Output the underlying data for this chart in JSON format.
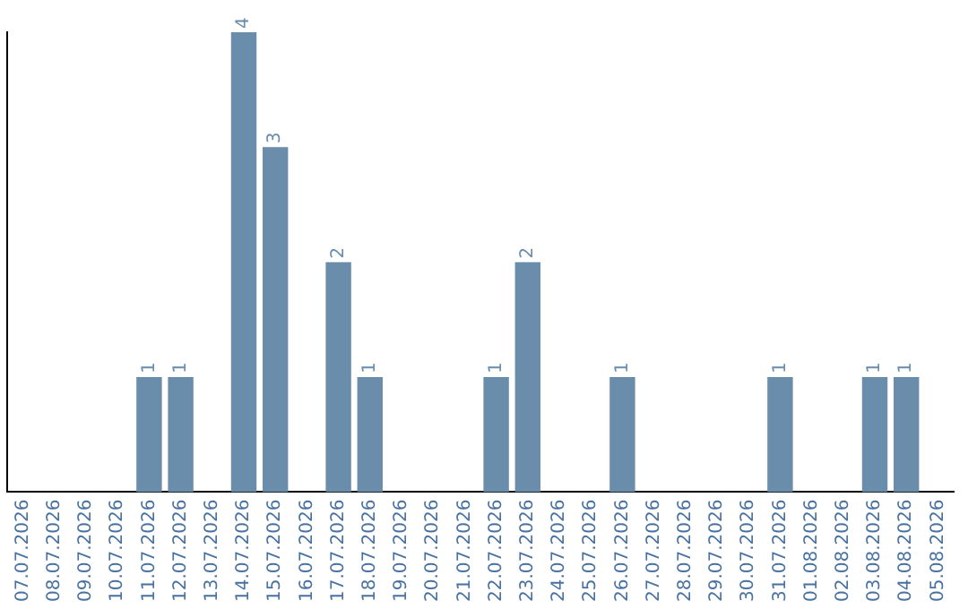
{
  "chart_data": {
    "type": "bar",
    "categories": [
      "07.07.2026",
      "08.07.2026",
      "09.07.2026",
      "10.07.2026",
      "11.07.2026",
      "12.07.2026",
      "13.07.2026",
      "14.07.2026",
      "15.07.2026",
      "16.07.2026",
      "17.07.2026",
      "18.07.2026",
      "19.07.2026",
      "20.07.2026",
      "21.07.2026",
      "22.07.2026",
      "23.07.2026",
      "24.07.2026",
      "25.07.2026",
      "26.07.2026",
      "27.07.2026",
      "28.07.2026",
      "29.07.2026",
      "30.07.2026",
      "31.07.2026",
      "01.08.2026",
      "02.08.2026",
      "03.08.2026",
      "04.08.2026",
      "05.08.2026"
    ],
    "values": [
      0,
      0,
      0,
      0,
      1,
      1,
      0,
      4,
      3,
      0,
      2,
      1,
      0,
      0,
      0,
      1,
      2,
      0,
      0,
      1,
      0,
      0,
      0,
      0,
      1,
      0,
      0,
      1,
      1,
      0
    ],
    "value_labels": [
      null,
      null,
      null,
      null,
      "1",
      "1",
      null,
      "4",
      "3",
      null,
      "2",
      "1",
      null,
      null,
      null,
      "1",
      "2",
      null,
      null,
      "1",
      null,
      null,
      null,
      null,
      "1",
      null,
      null,
      "1",
      "1",
      null
    ],
    "color": "#6b8dac",
    "tick_labels": "x",
    "grid": false,
    "legend": false
  }
}
